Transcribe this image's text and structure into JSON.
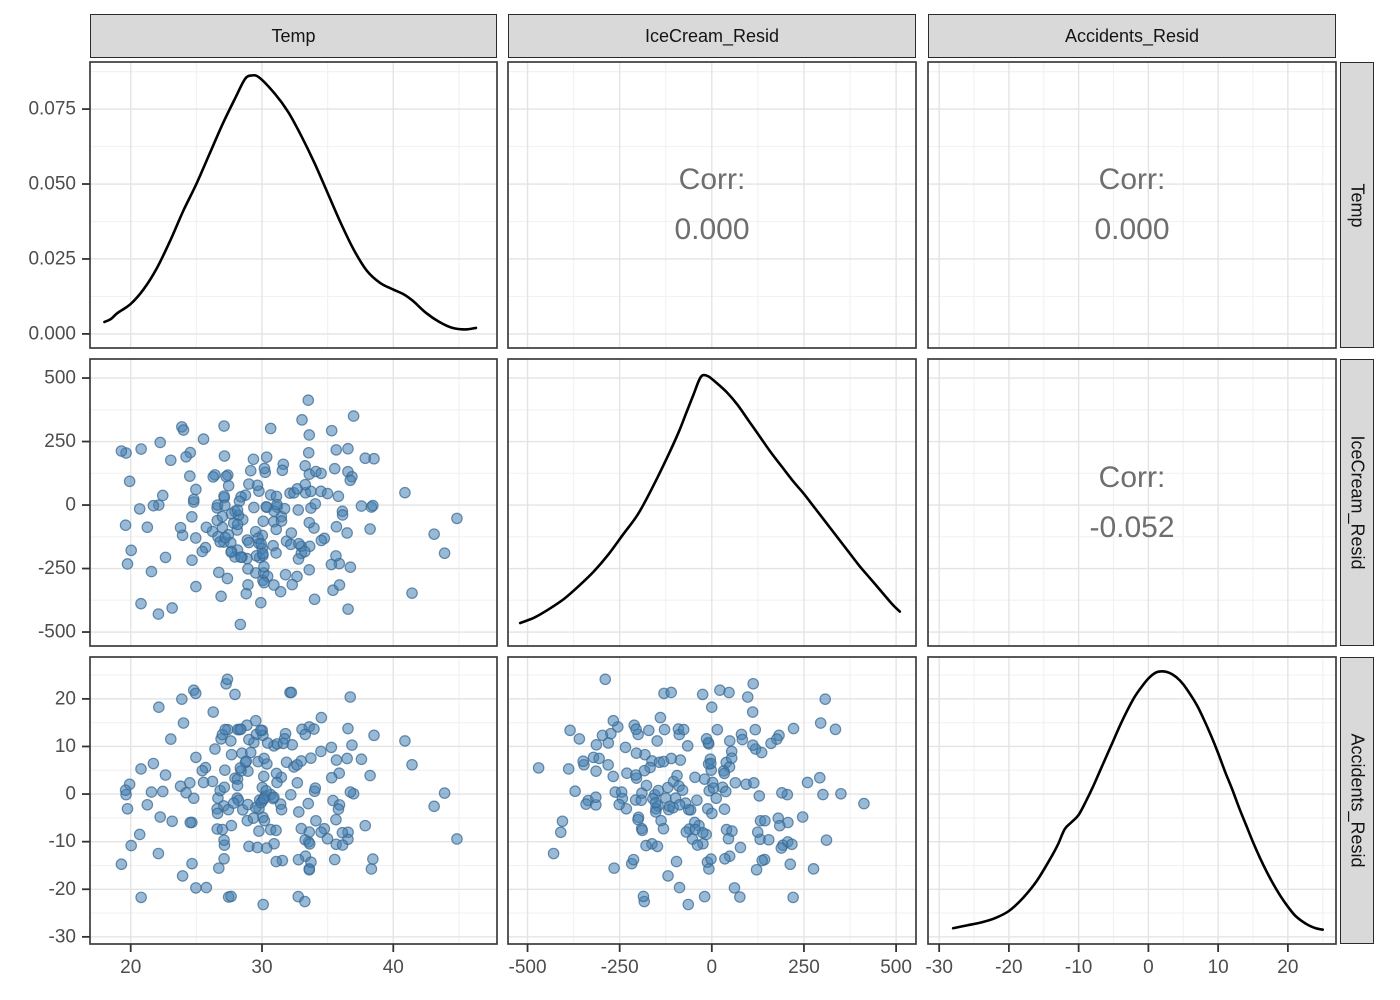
{
  "strips": {
    "top": [
      {
        "label": "Temp"
      },
      {
        "label": "IceCream_Resid"
      },
      {
        "label": "Accidents_Resid"
      }
    ],
    "right": [
      {
        "label": "Temp"
      },
      {
        "label": "IceCream_Resid"
      },
      {
        "label": "Accidents_Resid"
      }
    ]
  },
  "colors": {
    "point_fill": "rgba(70,130,180,0.55)",
    "point_stroke": "rgba(58,104,144,0.75)",
    "density_line": "#000000",
    "grid_major": "#e4e4e4",
    "grid_minor": "#f2f2f2",
    "panel_bg": "#ffffff",
    "panel_border": "#3c3c3c",
    "tick_mark": "#333333",
    "tick_label": "#4d4d4d",
    "strip_bg": "#d9d9d9",
    "corr_text": "#6e6e6e"
  },
  "chart_data": {
    "type": "scatter",
    "subtype": "pairs-matrix",
    "variables": [
      "Temp",
      "IceCream_Resid",
      "Accidents_Resid"
    ],
    "panels": [
      [
        "density-temp",
        "corr-temp-icecream",
        "corr-temp-accidents"
      ],
      [
        "scatter-icecream-vs-temp",
        "density-icecream",
        "corr-icecream-accidents"
      ],
      [
        "scatter-accidents-vs-temp",
        "scatter-accidents-vs-icecream",
        "density-accidents"
      ]
    ],
    "correlations": {
      "temp_icecream": {
        "label": "Corr:",
        "value": "0.000"
      },
      "temp_accidents": {
        "label": "Corr:",
        "value": "0.000"
      },
      "icecream_accidents": {
        "label": "Corr:",
        "value": "-0.052"
      }
    },
    "axes": {
      "x": [
        {
          "domain": [
            16.9,
            47.9
          ],
          "ticks": [
            20,
            30,
            40
          ],
          "tick_labels": [
            "20",
            "30",
            "40"
          ],
          "minor": [
            25,
            35,
            45
          ]
        },
        {
          "domain": [
            -553,
            554
          ],
          "ticks": [
            -500,
            -250,
            0,
            250,
            500
          ],
          "tick_labels": [
            "-500",
            "-250",
            "0",
            "250",
            "500"
          ],
          "minor": [
            -375,
            -125,
            125,
            375
          ]
        },
        {
          "domain": [
            -31.6,
            26.9
          ],
          "ticks": [
            -30,
            -20,
            -10,
            0,
            10,
            20
          ],
          "tick_labels": [
            "-30",
            "-20",
            "-10",
            "0",
            "10",
            "20"
          ],
          "minor": [
            -25,
            -15,
            -5,
            5,
            15,
            25
          ]
        }
      ],
      "y": [
        {
          "domain": [
            -0.0047,
            0.0907
          ],
          "ticks": [
            0,
            0.025,
            0.05,
            0.075
          ],
          "tick_labels": [
            "0.000",
            "0.025",
            "0.050",
            "0.075"
          ],
          "minor": [
            0.0125,
            0.0375,
            0.0625,
            0.0875
          ]
        },
        {
          "domain": [
            -555,
            575
          ],
          "ticks": [
            -500,
            -250,
            0,
            250,
            500
          ],
          "tick_labels": [
            "-500",
            "-250",
            "0",
            "250",
            "500"
          ],
          "minor": [
            -375,
            -125,
            125,
            375
          ]
        },
        {
          "domain": [
            -31.5,
            28.8
          ],
          "ticks": [
            -30,
            -20,
            -10,
            0,
            10,
            20
          ],
          "tick_labels": [
            "-30",
            "-20",
            "-10",
            "0",
            "10",
            "20"
          ],
          "minor": [
            -25,
            -15,
            -5,
            5,
            15,
            25
          ]
        }
      ]
    },
    "densities": {
      "temp": {
        "y_units": "density",
        "points": [
          [
            18,
            0.004
          ],
          [
            18.5,
            0.005
          ],
          [
            19,
            0.007
          ],
          [
            20,
            0.01
          ],
          [
            21,
            0.015
          ],
          [
            22,
            0.022
          ],
          [
            23,
            0.031
          ],
          [
            24,
            0.041
          ],
          [
            25,
            0.05
          ],
          [
            26,
            0.06
          ],
          [
            27,
            0.07
          ],
          [
            28,
            0.079
          ],
          [
            28.7,
            0.085
          ],
          [
            29.2,
            0.0862
          ],
          [
            29.8,
            0.0855
          ],
          [
            31,
            0.08
          ],
          [
            32,
            0.074
          ],
          [
            33,
            0.066
          ],
          [
            34,
            0.057
          ],
          [
            35,
            0.047
          ],
          [
            36,
            0.037
          ],
          [
            37,
            0.028
          ],
          [
            38,
            0.021
          ],
          [
            39,
            0.017
          ],
          [
            40,
            0.0148
          ],
          [
            40.8,
            0.0132
          ],
          [
            41.5,
            0.011
          ],
          [
            42.5,
            0.007
          ],
          [
            43.5,
            0.004
          ],
          [
            44.5,
            0.002
          ],
          [
            45.5,
            0.0015
          ],
          [
            46.3,
            0.002
          ]
        ]
      },
      "icecream": {
        "y_units": "normalized-panel-fraction",
        "points": [
          [
            -520,
            0.08
          ],
          [
            -480,
            0.1
          ],
          [
            -440,
            0.13
          ],
          [
            -400,
            0.165
          ],
          [
            -360,
            0.21
          ],
          [
            -320,
            0.26
          ],
          [
            -280,
            0.32
          ],
          [
            -240,
            0.39
          ],
          [
            -200,
            0.46
          ],
          [
            -160,
            0.555
          ],
          [
            -120,
            0.66
          ],
          [
            -90,
            0.745
          ],
          [
            -70,
            0.81
          ],
          [
            -50,
            0.875
          ],
          [
            -35,
            0.925
          ],
          [
            -25,
            0.943
          ],
          [
            -10,
            0.94
          ],
          [
            10,
            0.92
          ],
          [
            40,
            0.885
          ],
          [
            70,
            0.84
          ],
          [
            100,
            0.785
          ],
          [
            130,
            0.73
          ],
          [
            160,
            0.675
          ],
          [
            190,
            0.625
          ],
          [
            220,
            0.575
          ],
          [
            250,
            0.53
          ],
          [
            280,
            0.48
          ],
          [
            310,
            0.43
          ],
          [
            340,
            0.38
          ],
          [
            370,
            0.33
          ],
          [
            400,
            0.28
          ],
          [
            430,
            0.235
          ],
          [
            460,
            0.19
          ],
          [
            490,
            0.145
          ],
          [
            510,
            0.12
          ]
        ]
      },
      "accidents": {
        "y_units": "normalized-panel-fraction",
        "points": [
          [
            -28,
            0.055
          ],
          [
            -26,
            0.065
          ],
          [
            -24,
            0.075
          ],
          [
            -22,
            0.09
          ],
          [
            -20,
            0.115
          ],
          [
            -18,
            0.16
          ],
          [
            -16,
            0.22
          ],
          [
            -14,
            0.3
          ],
          [
            -13,
            0.345
          ],
          [
            -12,
            0.4
          ],
          [
            -11,
            0.425
          ],
          [
            -10,
            0.45
          ],
          [
            -9,
            0.495
          ],
          [
            -8,
            0.545
          ],
          [
            -7,
            0.6
          ],
          [
            -6,
            0.655
          ],
          [
            -5,
            0.71
          ],
          [
            -4,
            0.765
          ],
          [
            -3,
            0.815
          ],
          [
            -2,
            0.86
          ],
          [
            -1,
            0.895
          ],
          [
            0,
            0.925
          ],
          [
            1,
            0.945
          ],
          [
            2,
            0.95
          ],
          [
            3,
            0.945
          ],
          [
            4,
            0.93
          ],
          [
            5,
            0.905
          ],
          [
            6,
            0.87
          ],
          [
            7,
            0.83
          ],
          [
            8,
            0.78
          ],
          [
            9,
            0.725
          ],
          [
            10,
            0.665
          ],
          [
            11,
            0.6
          ],
          [
            12,
            0.54
          ],
          [
            13,
            0.475
          ],
          [
            14,
            0.415
          ],
          [
            15,
            0.355
          ],
          [
            16,
            0.3
          ],
          [
            17,
            0.25
          ],
          [
            18,
            0.205
          ],
          [
            19,
            0.165
          ],
          [
            20,
            0.13
          ],
          [
            21,
            0.1
          ],
          [
            22,
            0.08
          ],
          [
            23,
            0.065
          ],
          [
            24,
            0.055
          ],
          [
            25,
            0.05
          ]
        ]
      }
    },
    "scatter": {
      "n": 200,
      "seed": 7,
      "point_radius": 5.2,
      "temp": {
        "mean": 30.5,
        "sd": 5.2,
        "min": 17.8,
        "max": 46.6
      },
      "icecream_resid": {
        "mean": -40,
        "sd": 185,
        "min": -520,
        "max": 505
      },
      "accidents_resid": {
        "mean": 0.5,
        "sd": 10.5,
        "min": -28,
        "max": 24.5
      },
      "pairs": [
        {
          "row": 1,
          "col": 0,
          "x": "temp",
          "y": "icecream_resid"
        },
        {
          "row": 2,
          "col": 0,
          "x": "temp",
          "y": "accidents_resid"
        },
        {
          "row": 2,
          "col": 1,
          "x": "icecream_resid",
          "y": "accidents_resid"
        }
      ]
    }
  }
}
